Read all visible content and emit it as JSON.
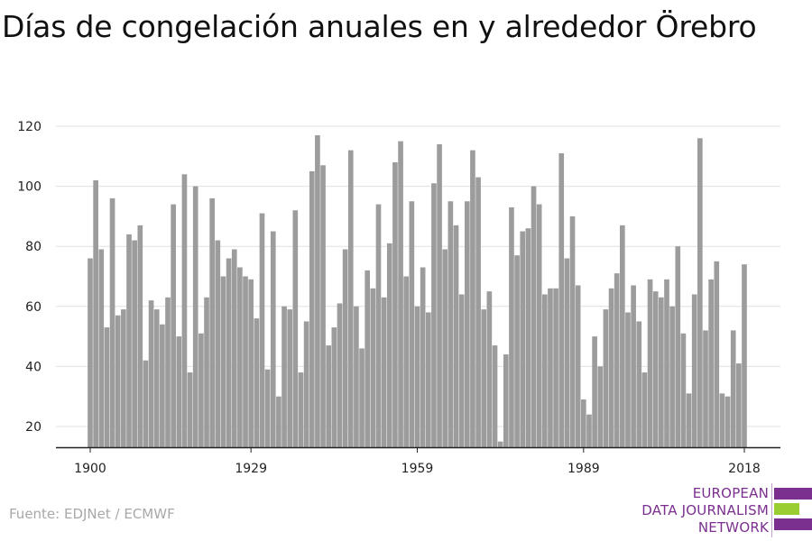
{
  "title": "Días de congelación anuales en y alrededor Örebro",
  "source": "Fuente: EDJNet / ECMWF",
  "logo": {
    "lines": [
      "EUROPEAN",
      "DATA JOURNALISM",
      "NETWORK"
    ],
    "colors": {
      "text": "#7b2f8f",
      "bar_purple": "#7b2f8f",
      "bar_green": "#9acd32"
    }
  },
  "colors": {
    "bar": "#9c9c9c",
    "grid": "#e0e0e0",
    "axis": "#222222",
    "tick_text": "#222222"
  },
  "chart_data": {
    "type": "bar",
    "title": "Días de congelación anuales en y alrededor Örebro",
    "xlabel": "",
    "ylabel": "",
    "ylim": [
      13,
      125
    ],
    "yticks": [
      20,
      40,
      60,
      80,
      100,
      120
    ],
    "xticks": [
      1900,
      1929,
      1959,
      1989,
      2018
    ],
    "grid": true,
    "x": [
      1900,
      1901,
      1902,
      1903,
      1904,
      1905,
      1906,
      1907,
      1908,
      1909,
      1910,
      1911,
      1912,
      1913,
      1914,
      1915,
      1916,
      1917,
      1918,
      1919,
      1920,
      1921,
      1922,
      1923,
      1924,
      1925,
      1926,
      1927,
      1928,
      1929,
      1930,
      1931,
      1932,
      1933,
      1934,
      1935,
      1936,
      1937,
      1938,
      1939,
      1940,
      1941,
      1942,
      1943,
      1944,
      1945,
      1946,
      1947,
      1948,
      1949,
      1950,
      1951,
      1952,
      1953,
      1954,
      1955,
      1956,
      1957,
      1958,
      1959,
      1960,
      1961,
      1962,
      1963,
      1964,
      1965,
      1966,
      1967,
      1968,
      1969,
      1970,
      1971,
      1972,
      1973,
      1974,
      1975,
      1976,
      1977,
      1978,
      1979,
      1980,
      1981,
      1982,
      1983,
      1984,
      1985,
      1986,
      1987,
      1988,
      1989,
      1990,
      1991,
      1992,
      1993,
      1994,
      1995,
      1996,
      1997,
      1998,
      1999,
      2000,
      2001,
      2002,
      2003,
      2004,
      2005,
      2006,
      2007,
      2008,
      2009,
      2010,
      2011,
      2012,
      2013,
      2014,
      2015,
      2016,
      2017,
      2018
    ],
    "values": [
      76,
      102,
      79,
      53,
      96,
      57,
      59,
      84,
      82,
      87,
      42,
      62,
      59,
      54,
      63,
      94,
      50,
      104,
      38,
      100,
      51,
      63,
      96,
      82,
      70,
      76,
      79,
      73,
      70,
      69,
      56,
      91,
      39,
      85,
      30,
      60,
      59,
      92,
      38,
      55,
      105,
      117,
      107,
      47,
      53,
      61,
      79,
      112,
      60,
      46,
      72,
      66,
      94,
      63,
      81,
      108,
      115,
      70,
      95,
      60,
      73,
      58,
      101,
      114,
      79,
      95,
      87,
      64,
      95,
      112,
      103,
      59,
      65,
      47,
      15,
      44,
      93,
      77,
      85,
      86,
      100,
      94,
      64,
      66,
      66,
      111,
      76,
      90,
      67,
      29,
      24,
      50,
      40,
      59,
      66,
      71,
      87,
      58,
      67,
      55,
      38,
      69,
      65,
      63,
      69,
      60,
      80,
      51,
      31,
      64,
      116,
      52,
      69,
      75,
      31,
      30,
      52,
      41,
      74
    ]
  }
}
